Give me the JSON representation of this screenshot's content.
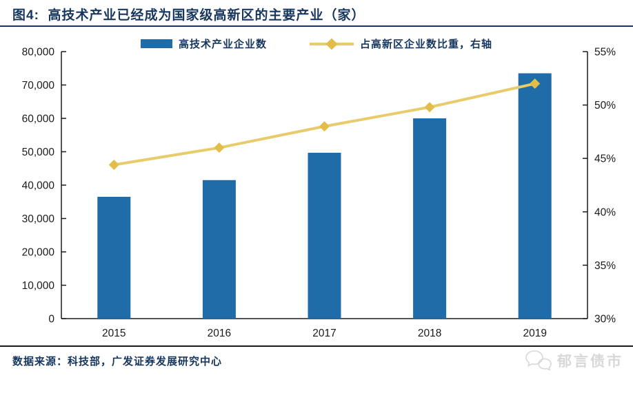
{
  "header": {
    "title": "图4:  高技术产业已经成为国家级高新区的主要产业（家）"
  },
  "legend": [
    {
      "label": "高技术产业企业数",
      "marker": "bar-swatch"
    },
    {
      "label": "占高新区企业数比重，右轴",
      "marker": "line-diamond-swatch"
    }
  ],
  "footer": {
    "source": "数据来源：科技部，广发证券发展研究中心",
    "watermark": "郁言债市"
  },
  "colors": {
    "bar": "#1F6CA8",
    "line": "#E8CC6B",
    "marker": "#E2BD4A",
    "title": "#17365D",
    "axis": "#1A1A1A",
    "tick_label": "#1A1A1A",
    "watermark": "#D8D8D8"
  },
  "chart_data": {
    "type": "bar",
    "subtype": "combo-bar-line",
    "title": "高技术产业已经成为国家级高新区的主要产业（家）",
    "categories": [
      "2015",
      "2016",
      "2017",
      "2018",
      "2019"
    ],
    "series": [
      {
        "name": "高技术产业企业数",
        "type": "bar",
        "axis": "left",
        "values": [
          36500,
          41500,
          49700,
          60000,
          73500
        ]
      },
      {
        "name": "占高新区企业数比重，右轴",
        "type": "line",
        "axis": "right",
        "unit": "%",
        "values": [
          44.4,
          46.0,
          48.0,
          49.8,
          52.0
        ]
      }
    ],
    "left_axis": {
      "min": 0,
      "max": 80000,
      "step": 10000,
      "tick_labels": [
        "0",
        "10,000",
        "20,000",
        "30,000",
        "40,000",
        "50,000",
        "60,000",
        "70,000",
        "80,000"
      ]
    },
    "right_axis": {
      "min": 30,
      "max": 55,
      "step": 5,
      "tick_labels": [
        "30%",
        "35%",
        "40%",
        "45%",
        "50%",
        "55%"
      ]
    },
    "grid": false,
    "legend_position": "top"
  }
}
